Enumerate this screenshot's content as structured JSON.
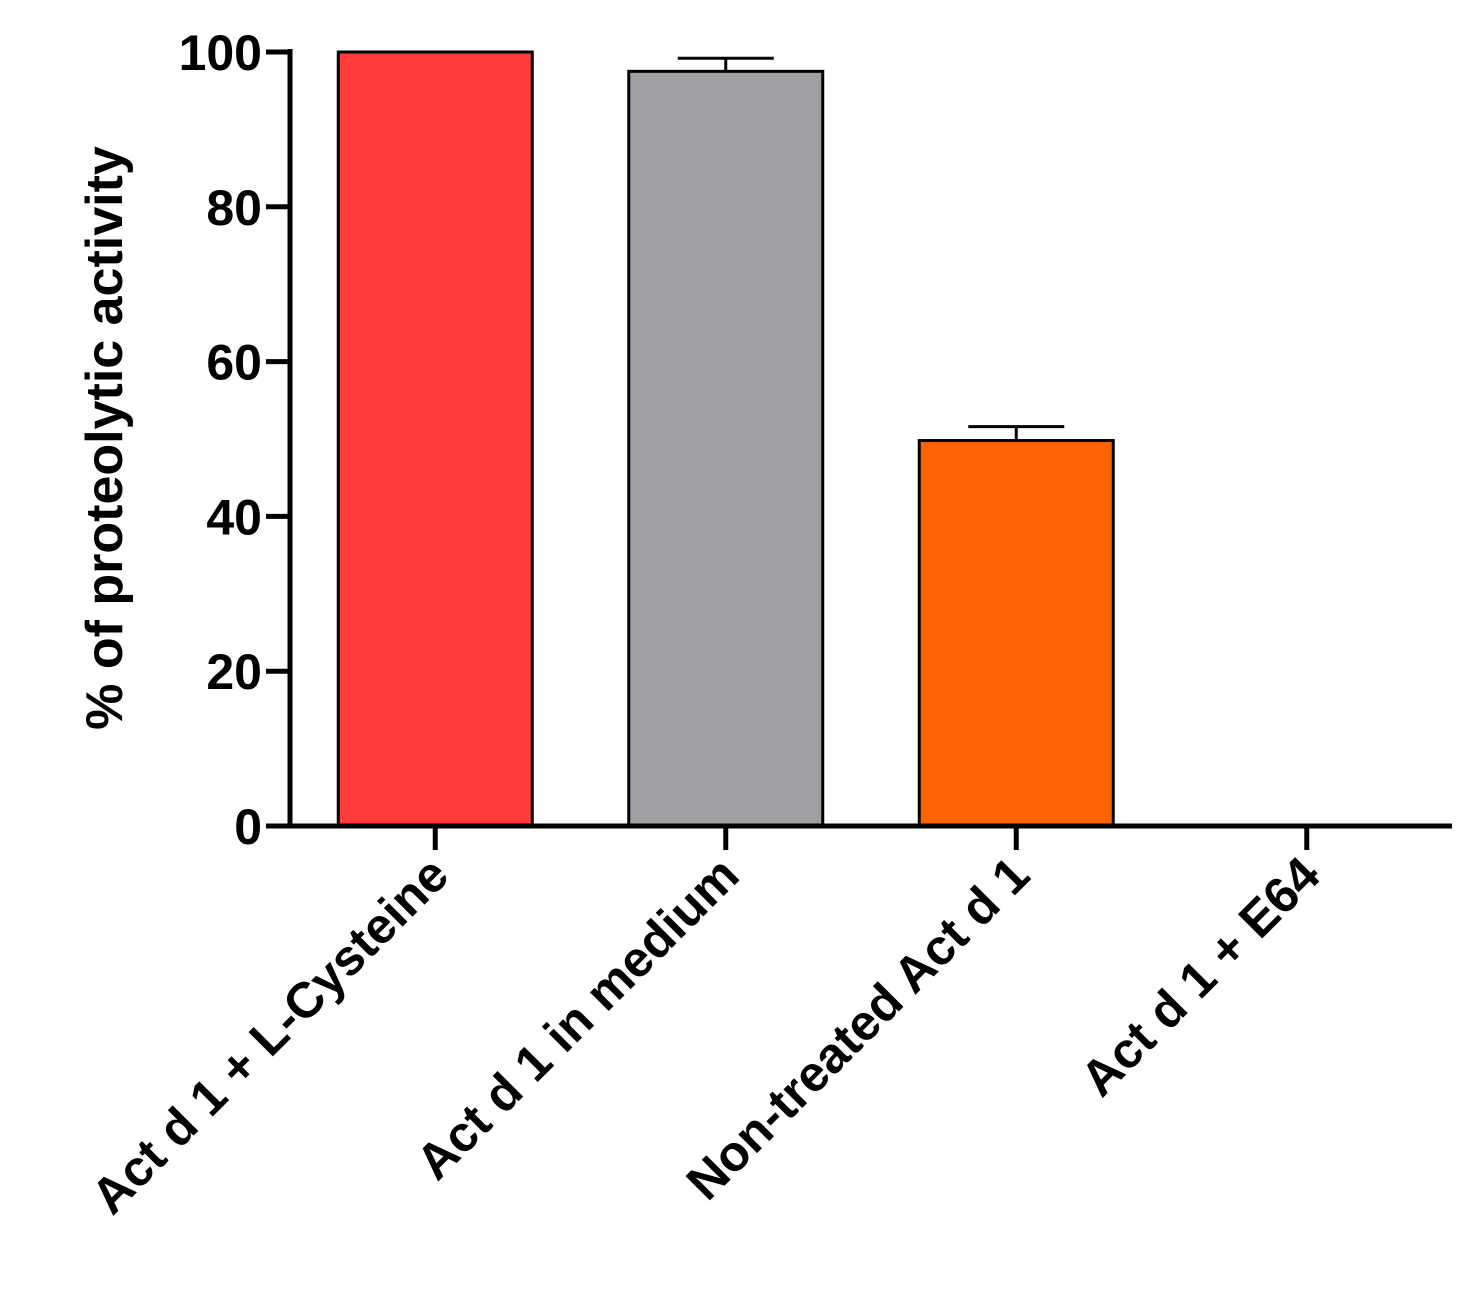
{
  "chart_data": {
    "type": "bar",
    "title": "",
    "xlabel": "",
    "ylabel": "% of proteolytic activity",
    "ylim": [
      0,
      100
    ],
    "yticks": [
      0,
      20,
      40,
      60,
      80,
      100
    ],
    "grid": false,
    "legend": "none",
    "categories": [
      "Act d 1 + L-Cysteine",
      "Act d 1 in medium",
      "Non-treated Act d 1",
      "Act d 1 + E64"
    ],
    "values": [
      100,
      97.5,
      49.8,
      0
    ],
    "errors": [
      0,
      1.7,
      1.8,
      0
    ],
    "colors": [
      "#ff3c3c",
      "#a0a0a4",
      "#ff6200",
      "#ffffff"
    ]
  }
}
